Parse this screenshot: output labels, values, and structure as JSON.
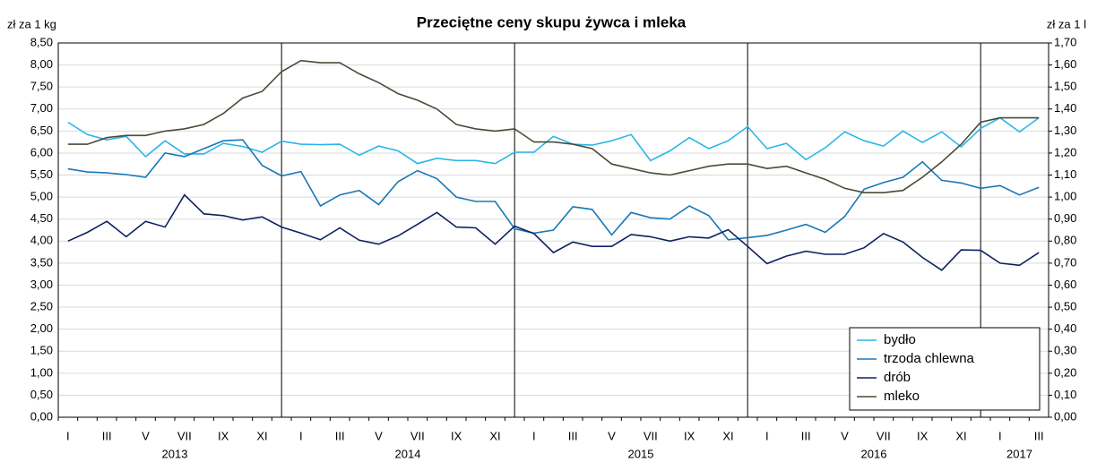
{
  "chart_data": {
    "type": "line",
    "title": "Przeciętne ceny skupu żywca i mleka",
    "ylabel": "zł za 1 kg",
    "y2label": "zł za 1 l",
    "categories": [
      "I",
      null,
      "III",
      null,
      "V",
      null,
      "VII",
      null,
      "IX",
      null,
      "XI",
      null,
      "I",
      null,
      "III",
      null,
      "V",
      null,
      "VII",
      null,
      "IX",
      null,
      "XI",
      null,
      "I",
      null,
      "III",
      null,
      "V",
      null,
      "VII",
      null,
      "IX",
      null,
      "XI",
      null,
      "I",
      null,
      "III",
      null,
      "V",
      null,
      "VII",
      null,
      "IX",
      null,
      "XI",
      null,
      "I",
      null,
      "III"
    ],
    "years": [
      "2013",
      "2014",
      "2015",
      "2016",
      "2017"
    ],
    "ylim": [
      0,
      8.5
    ],
    "yticks": [
      {
        "value": 0,
        "label": "0,00"
      },
      {
        "value": 0.5,
        "label": "0,50"
      },
      {
        "value": 1,
        "label": "1,00"
      },
      {
        "value": 1.5,
        "label": "1,50"
      },
      {
        "value": 2,
        "label": "2,00"
      },
      {
        "value": 2.5,
        "label": "2,50"
      },
      {
        "value": 3,
        "label": "3,00"
      },
      {
        "value": 3.5,
        "label": "3,50"
      },
      {
        "value": 4,
        "label": "4,00"
      },
      {
        "value": 4.5,
        "label": "4,50"
      },
      {
        "value": 5,
        "label": "5,00"
      },
      {
        "value": 5.5,
        "label": "5,50"
      },
      {
        "value": 6,
        "label": "6,00"
      },
      {
        "value": 6.5,
        "label": "6,50"
      },
      {
        "value": 7,
        "label": "7,00"
      },
      {
        "value": 7.5,
        "label": "7,50"
      },
      {
        "value": 8,
        "label": "8,00"
      },
      {
        "value": 8.5,
        "label": "8,50"
      }
    ],
    "y2lim": [
      0,
      1.7
    ],
    "y2ticks": [
      {
        "value": 0,
        "label": "0,00"
      },
      {
        "value": 0.1,
        "label": "0,10"
      },
      {
        "value": 0.2,
        "label": "0,20"
      },
      {
        "value": 0.3,
        "label": "0,30"
      },
      {
        "value": 0.4,
        "label": "0,40"
      },
      {
        "value": 0.5,
        "label": "0,50"
      },
      {
        "value": 0.6,
        "label": "0,60"
      },
      {
        "value": 0.7,
        "label": "0,70"
      },
      {
        "value": 0.8,
        "label": "0,80"
      },
      {
        "value": 0.9,
        "label": "0,90"
      },
      {
        "value": 1,
        "label": "1,00"
      },
      {
        "value": 1.1,
        "label": "1,10"
      },
      {
        "value": 1.2,
        "label": "1,20"
      },
      {
        "value": 1.3,
        "label": "1,30"
      },
      {
        "value": 1.4,
        "label": "1,40"
      },
      {
        "value": 1.5,
        "label": "1,50"
      },
      {
        "value": 1.6,
        "label": "1,60"
      },
      {
        "value": 1.7,
        "label": "1,70"
      }
    ],
    "grid": true,
    "legend": "lower right",
    "series": [
      {
        "name": "bydło",
        "color": "#29b6e8",
        "values": [
          6.7,
          6.42,
          6.3,
          6.38,
          5.92,
          6.28,
          5.98,
          5.98,
          6.22,
          6.15,
          6.02,
          6.27,
          6.2,
          6.19,
          6.2,
          5.95,
          6.16,
          6.05,
          5.76,
          5.88,
          5.83,
          5.83,
          5.76,
          6.02,
          6.02,
          6.38,
          6.2,
          6.18,
          6.28,
          6.42,
          5.83,
          6.05,
          6.35,
          6.1,
          6.28,
          6.6,
          6.1,
          6.22,
          5.85,
          6.12,
          6.48,
          6.28,
          6.16,
          6.5,
          6.24,
          6.48,
          6.14,
          6.56,
          6.8,
          6.48,
          6.8
        ]
      },
      {
        "name": "trzoda chlewna",
        "color": "#1878b8",
        "values": [
          5.64,
          5.57,
          5.55,
          5.51,
          5.45,
          6.0,
          5.92,
          6.1,
          6.28,
          6.3,
          5.72,
          5.48,
          5.58,
          4.8,
          5.05,
          5.15,
          4.83,
          5.35,
          5.6,
          5.42,
          5.0,
          4.9,
          4.9,
          4.28,
          4.18,
          4.25,
          4.78,
          4.72,
          4.14,
          4.65,
          4.53,
          4.5,
          4.8,
          4.58,
          4.03,
          4.08,
          4.13,
          4.25,
          4.38,
          4.2,
          4.56,
          5.18,
          5.33,
          5.45,
          5.8,
          5.38,
          5.32,
          5.2,
          5.26,
          5.05,
          5.22
        ]
      },
      {
        "name": "drób",
        "color": "#0d2260",
        "values": [
          4.0,
          4.2,
          4.45,
          4.1,
          4.45,
          4.32,
          5.05,
          4.62,
          4.58,
          4.48,
          4.55,
          4.32,
          4.18,
          4.03,
          4.3,
          4.02,
          3.93,
          4.12,
          4.38,
          4.65,
          4.32,
          4.3,
          3.93,
          4.34,
          4.17,
          3.74,
          3.98,
          3.88,
          3.88,
          4.15,
          4.1,
          4.0,
          4.1,
          4.07,
          4.26,
          3.88,
          3.49,
          3.66,
          3.77,
          3.7,
          3.7,
          3.85,
          4.17,
          3.98,
          3.63,
          3.34,
          3.8,
          3.79,
          3.5,
          3.45,
          3.74
        ]
      },
      {
        "name": "mleko",
        "color": "#4a4a38",
        "axis": "y2",
        "values": [
          1.24,
          1.24,
          1.27,
          1.28,
          1.28,
          1.3,
          1.31,
          1.33,
          1.38,
          1.45,
          1.48,
          1.57,
          1.62,
          1.61,
          1.61,
          1.56,
          1.52,
          1.47,
          1.44,
          1.4,
          1.33,
          1.31,
          1.3,
          1.31,
          1.25,
          1.25,
          1.24,
          1.22,
          1.15,
          1.13,
          1.11,
          1.1,
          1.12,
          1.14,
          1.15,
          1.15,
          1.13,
          1.14,
          1.11,
          1.08,
          1.04,
          1.02,
          1.02,
          1.03,
          1.09,
          1.16,
          1.24,
          1.34,
          1.36,
          1.36,
          1.36
        ]
      }
    ]
  }
}
